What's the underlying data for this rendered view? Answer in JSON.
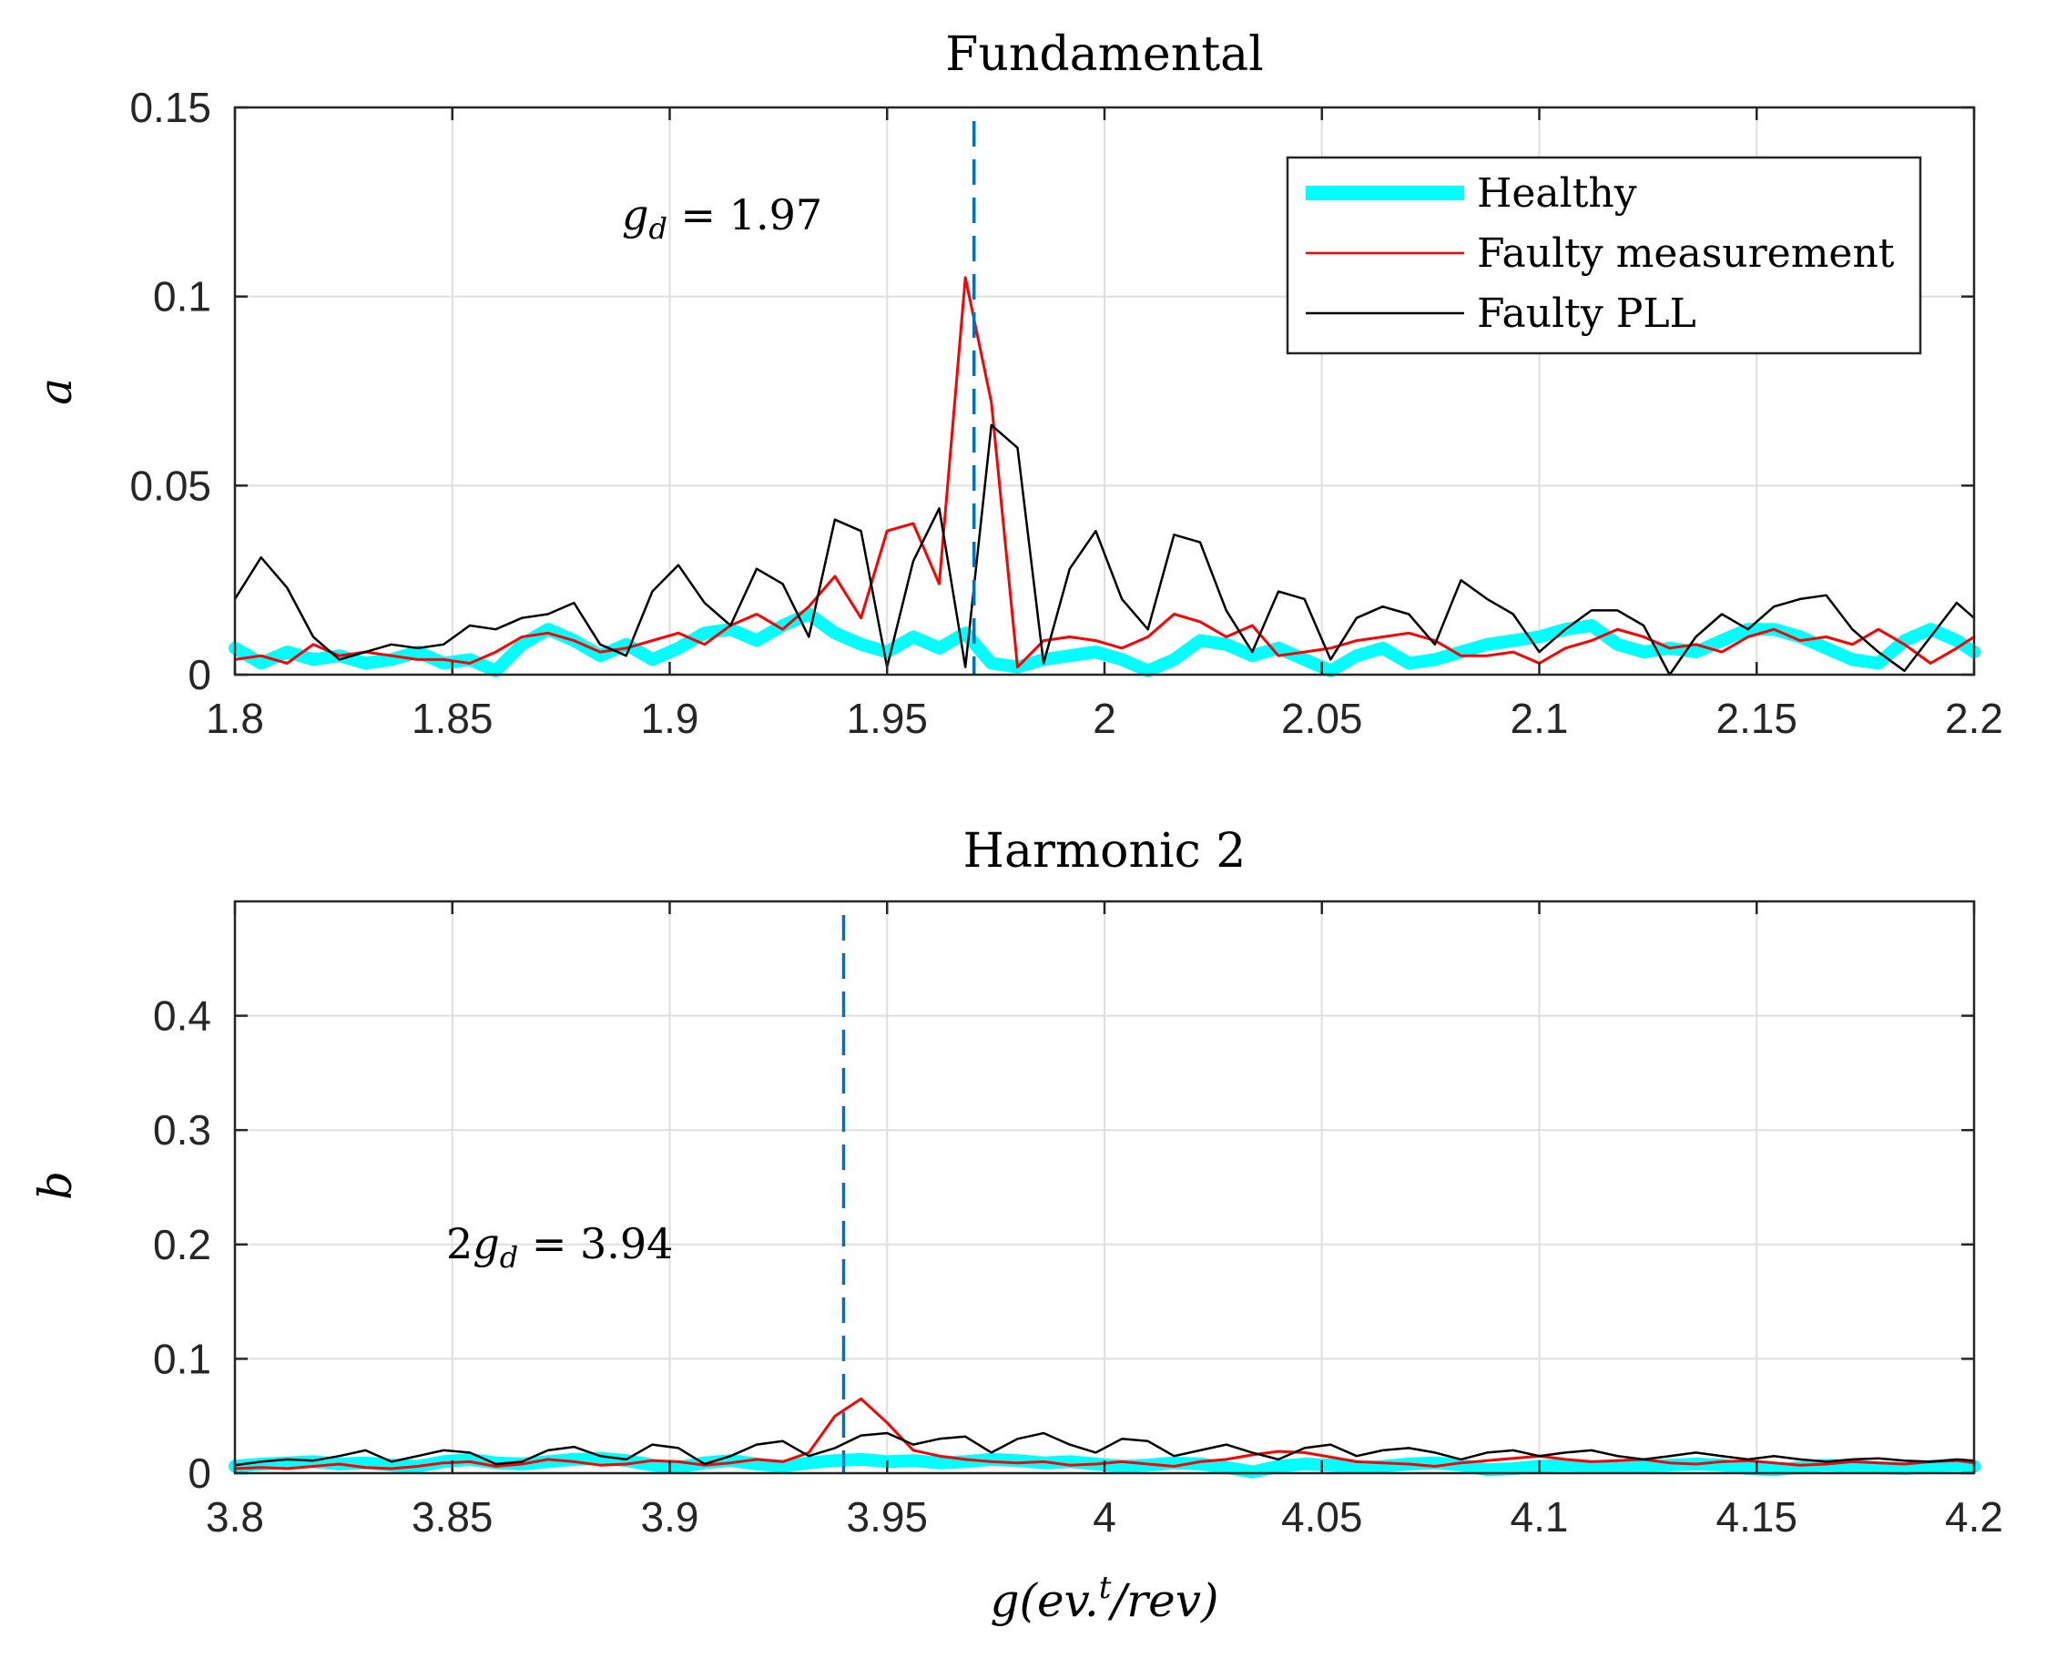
{
  "chart_data": [
    {
      "type": "line",
      "title": "Fundamental",
      "ylabel": "a",
      "xlabel": "",
      "xlim": [
        1.8,
        2.2
      ],
      "ylim": [
        0,
        0.15
      ],
      "xticks": [
        "1.8",
        "1.85",
        "1.9",
        "1.95",
        "2",
        "2.05",
        "2.1",
        "2.15",
        "2.2"
      ],
      "yticks": [
        "0",
        "0.05",
        "0.1",
        "0.15"
      ],
      "grid": true,
      "annotation": {
        "text": "g_d = 1.97",
        "x": 1.97
      },
      "vline_x": 1.97,
      "legend": {
        "placement": "top-right",
        "entries": [
          "Healthy",
          "Faulty measurement",
          "Faulty PLL"
        ]
      },
      "colors": {
        "healthy": "#00ffff",
        "faulty_measurement": "#ff0000",
        "faulty_pll": "#000000",
        "vline": "#0072bd"
      },
      "x": [
        1.8,
        1.806,
        1.812,
        1.818,
        1.824,
        1.83,
        1.836,
        1.842,
        1.848,
        1.854,
        1.86,
        1.866,
        1.872,
        1.878,
        1.884,
        1.89,
        1.896,
        1.902,
        1.908,
        1.914,
        1.92,
        1.926,
        1.932,
        1.938,
        1.944,
        1.95,
        1.956,
        1.962,
        1.968,
        1.974,
        1.98,
        1.986,
        1.992,
        1.998,
        2.004,
        2.01,
        2.016,
        2.022,
        2.028,
        2.034,
        2.04,
        2.046,
        2.052,
        2.058,
        2.064,
        2.07,
        2.076,
        2.082,
        2.088,
        2.094,
        2.1,
        2.106,
        2.112,
        2.118,
        2.124,
        2.13,
        2.136,
        2.142,
        2.148,
        2.154,
        2.16,
        2.166,
        2.172,
        2.178,
        2.184,
        2.19,
        2.196,
        2.2
      ],
      "series": [
        {
          "name": "Healthy",
          "values": [
            0.007,
            0.003,
            0.006,
            0.004,
            0.005,
            0.003,
            0.004,
            0.006,
            0.003,
            0.004,
            0.001,
            0.008,
            0.012,
            0.009,
            0.005,
            0.008,
            0.004,
            0.007,
            0.011,
            0.012,
            0.009,
            0.013,
            0.016,
            0.011,
            0.008,
            0.006,
            0.01,
            0.007,
            0.011,
            0.003,
            0.002,
            0.004,
            0.005,
            0.006,
            0.004,
            0.001,
            0.004,
            0.009,
            0.008,
            0.005,
            0.007,
            0.004,
            0.001,
            0.005,
            0.007,
            0.003,
            0.004,
            0.006,
            0.008,
            0.009,
            0.01,
            0.012,
            0.013,
            0.008,
            0.006,
            0.007,
            0.006,
            0.009,
            0.012,
            0.012,
            0.01,
            0.007,
            0.004,
            0.003,
            0.009,
            0.012,
            0.009,
            0.006
          ]
        },
        {
          "name": "Faulty measurement",
          "values": [
            0.004,
            0.005,
            0.003,
            0.008,
            0.005,
            0.006,
            0.005,
            0.004,
            0.004,
            0.003,
            0.006,
            0.01,
            0.011,
            0.009,
            0.006,
            0.007,
            0.009,
            0.011,
            0.008,
            0.013,
            0.016,
            0.012,
            0.018,
            0.026,
            0.015,
            0.038,
            0.04,
            0.024,
            0.105,
            0.072,
            0.002,
            0.009,
            0.01,
            0.009,
            0.007,
            0.01,
            0.016,
            0.014,
            0.01,
            0.013,
            0.005,
            0.006,
            0.007,
            0.009,
            0.01,
            0.011,
            0.009,
            0.005,
            0.005,
            0.006,
            0.003,
            0.007,
            0.009,
            0.012,
            0.01,
            0.007,
            0.008,
            0.006,
            0.01,
            0.012,
            0.009,
            0.01,
            0.008,
            0.012,
            0.008,
            0.003,
            0.007,
            0.01
          ]
        },
        {
          "name": "Faulty PLL",
          "values": [
            0.02,
            0.031,
            0.023,
            0.01,
            0.004,
            0.006,
            0.008,
            0.007,
            0.008,
            0.013,
            0.012,
            0.015,
            0.016,
            0.019,
            0.008,
            0.005,
            0.022,
            0.029,
            0.019,
            0.013,
            0.028,
            0.024,
            0.01,
            0.041,
            0.038,
            0.002,
            0.03,
            0.044,
            0.002,
            0.066,
            0.06,
            0.003,
            0.028,
            0.038,
            0.02,
            0.012,
            0.037,
            0.035,
            0.017,
            0.006,
            0.022,
            0.02,
            0.004,
            0.015,
            0.018,
            0.016,
            0.008,
            0.025,
            0.02,
            0.016,
            0.006,
            0.012,
            0.017,
            0.017,
            0.013,
            0.0,
            0.01,
            0.016,
            0.012,
            0.018,
            0.02,
            0.021,
            0.012,
            0.006,
            0.001,
            0.01,
            0.019,
            0.015
          ]
        }
      ]
    },
    {
      "type": "line",
      "title": "Harmonic 2",
      "ylabel": "b",
      "xlabel": "g(ev.^t/rev)",
      "xlim": [
        3.8,
        4.2
      ],
      "ylim": [
        0,
        0.5
      ],
      "xticks": [
        "3.8",
        "3.85",
        "3.9",
        "3.95",
        "4",
        "4.05",
        "4.1",
        "4.15",
        "4.2"
      ],
      "yticks": [
        "0",
        "0.1",
        "0.2",
        "0.3",
        "0.4"
      ],
      "grid": true,
      "annotation": {
        "text": "2g_d = 3.94",
        "x": 3.94
      },
      "vline_x": 3.94,
      "x": [
        3.8,
        3.806,
        3.812,
        3.818,
        3.824,
        3.83,
        3.836,
        3.842,
        3.848,
        3.854,
        3.86,
        3.866,
        3.872,
        3.878,
        3.884,
        3.89,
        3.896,
        3.902,
        3.908,
        3.914,
        3.92,
        3.926,
        3.932,
        3.938,
        3.944,
        3.95,
        3.956,
        3.962,
        3.968,
        3.974,
        3.98,
        3.986,
        3.992,
        3.998,
        4.004,
        4.01,
        4.016,
        4.022,
        4.028,
        4.034,
        4.04,
        4.046,
        4.052,
        4.058,
        4.064,
        4.07,
        4.076,
        4.082,
        4.088,
        4.094,
        4.1,
        4.106,
        4.112,
        4.118,
        4.124,
        4.13,
        4.136,
        4.142,
        4.148,
        4.154,
        4.16,
        4.166,
        4.172,
        4.178,
        4.184,
        4.19,
        4.196,
        4.2
      ],
      "series": [
        {
          "name": "Healthy",
          "values": [
            0.006,
            0.008,
            0.009,
            0.01,
            0.008,
            0.009,
            0.007,
            0.006,
            0.01,
            0.012,
            0.009,
            0.008,
            0.01,
            0.012,
            0.013,
            0.011,
            0.007,
            0.005,
            0.009,
            0.011,
            0.008,
            0.006,
            0.009,
            0.011,
            0.012,
            0.01,
            0.011,
            0.009,
            0.01,
            0.012,
            0.011,
            0.009,
            0.01,
            0.008,
            0.006,
            0.007,
            0.009,
            0.008,
            0.005,
            0.001,
            0.006,
            0.008,
            0.007,
            0.005,
            0.006,
            0.008,
            0.009,
            0.007,
            0.003,
            0.004,
            0.006,
            0.007,
            0.006,
            0.005,
            0.006,
            0.007,
            0.008,
            0.007,
            0.004,
            0.003,
            0.005,
            0.007,
            0.006,
            0.005,
            0.004,
            0.006,
            0.007,
            0.006
          ]
        },
        {
          "name": "Faulty measurement",
          "values": [
            0.004,
            0.005,
            0.004,
            0.006,
            0.008,
            0.005,
            0.004,
            0.006,
            0.009,
            0.01,
            0.006,
            0.008,
            0.012,
            0.01,
            0.007,
            0.008,
            0.011,
            0.01,
            0.007,
            0.009,
            0.012,
            0.01,
            0.018,
            0.05,
            0.065,
            0.044,
            0.02,
            0.015,
            0.012,
            0.01,
            0.009,
            0.01,
            0.007,
            0.008,
            0.01,
            0.008,
            0.006,
            0.01,
            0.012,
            0.016,
            0.019,
            0.018,
            0.014,
            0.01,
            0.009,
            0.008,
            0.006,
            0.009,
            0.011,
            0.013,
            0.015,
            0.012,
            0.01,
            0.011,
            0.012,
            0.009,
            0.008,
            0.01,
            0.011,
            0.009,
            0.007,
            0.008,
            0.01,
            0.009,
            0.008,
            0.01,
            0.011,
            0.009
          ]
        },
        {
          "name": "Faulty PLL",
          "values": [
            0.007,
            0.01,
            0.012,
            0.011,
            0.015,
            0.02,
            0.01,
            0.015,
            0.02,
            0.018,
            0.008,
            0.01,
            0.02,
            0.023,
            0.015,
            0.012,
            0.025,
            0.022,
            0.008,
            0.015,
            0.025,
            0.028,
            0.015,
            0.022,
            0.033,
            0.035,
            0.025,
            0.03,
            0.032,
            0.018,
            0.03,
            0.035,
            0.025,
            0.018,
            0.03,
            0.028,
            0.015,
            0.02,
            0.025,
            0.018,
            0.012,
            0.022,
            0.025,
            0.015,
            0.02,
            0.022,
            0.018,
            0.012,
            0.018,
            0.02,
            0.015,
            0.018,
            0.02,
            0.015,
            0.012,
            0.015,
            0.018,
            0.015,
            0.012,
            0.015,
            0.012,
            0.01,
            0.012,
            0.013,
            0.011,
            0.01,
            0.012,
            0.011
          ]
        }
      ]
    }
  ]
}
